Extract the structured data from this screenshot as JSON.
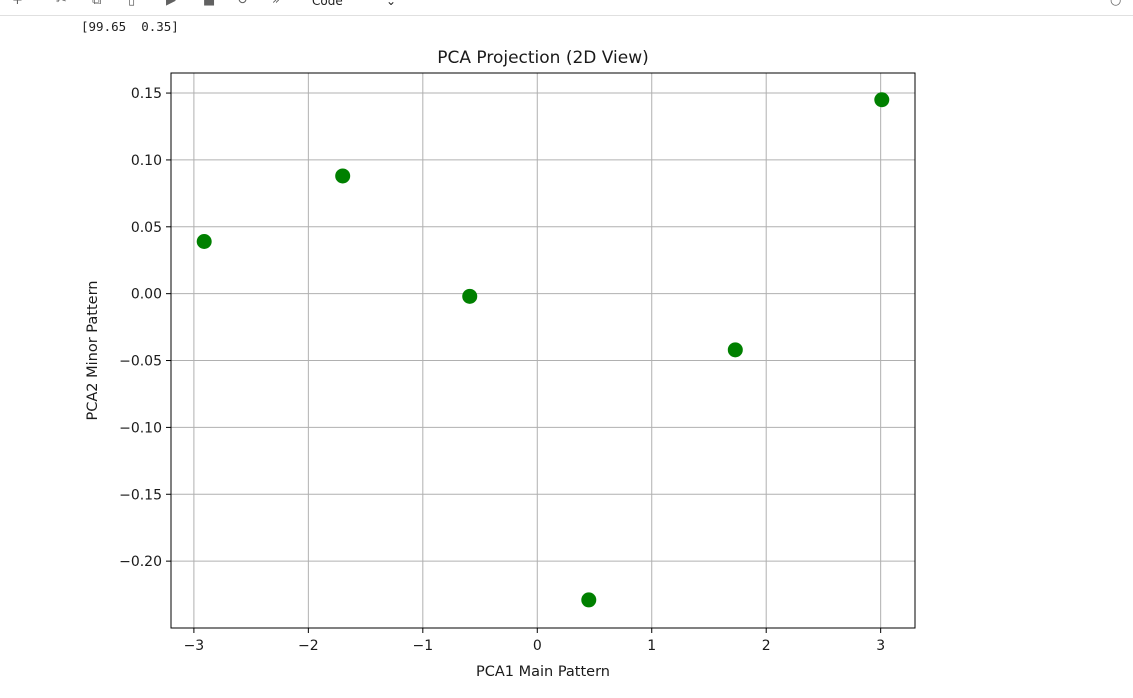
{
  "toolbar": {
    "items": [
      {
        "name": "add-cell-icon",
        "glyph": "+"
      },
      {
        "name": "cut-icon",
        "glyph": "✂"
      },
      {
        "name": "copy-icon",
        "glyph": "⧉"
      },
      {
        "name": "paste-icon",
        "glyph": "▯"
      },
      {
        "name": "run-icon",
        "glyph": "▶"
      },
      {
        "name": "stop-icon",
        "glyph": "■"
      },
      {
        "name": "restart-icon",
        "glyph": "↻"
      },
      {
        "name": "fast-forward-icon",
        "glyph": "»"
      }
    ],
    "cell_type": "Code",
    "kernel_status_glyph": "○"
  },
  "output": {
    "text": "[99.65  0.35]"
  },
  "chart_data": {
    "type": "scatter",
    "title": "PCA Projection (2D View)",
    "xlabel": "PCA1 Main Pattern",
    "ylabel": "PCA2 Minor Pattern",
    "xlim": [
      -3.2,
      3.3
    ],
    "ylim": [
      -0.25,
      0.165
    ],
    "xticks": [
      -3,
      -2,
      -1,
      0,
      1,
      2,
      3
    ],
    "xtick_labels": [
      "−3",
      "−2",
      "−1",
      "0",
      "1",
      "2",
      "3"
    ],
    "yticks": [
      0.15,
      0.1,
      0.05,
      0.0,
      -0.05,
      -0.1,
      -0.15,
      -0.2
    ],
    "ytick_labels": [
      "0.15",
      "0.10",
      "0.05",
      "0.00",
      "−0.05",
      "−0.10",
      "−0.15",
      "−0.20"
    ],
    "grid": true,
    "marker_color": "#008000",
    "points": [
      {
        "x": -2.91,
        "y": 0.039
      },
      {
        "x": -1.7,
        "y": 0.088
      },
      {
        "x": -0.59,
        "y": -0.002
      },
      {
        "x": 0.45,
        "y": -0.229
      },
      {
        "x": 1.73,
        "y": -0.042
      },
      {
        "x": 3.01,
        "y": 0.145
      }
    ]
  }
}
